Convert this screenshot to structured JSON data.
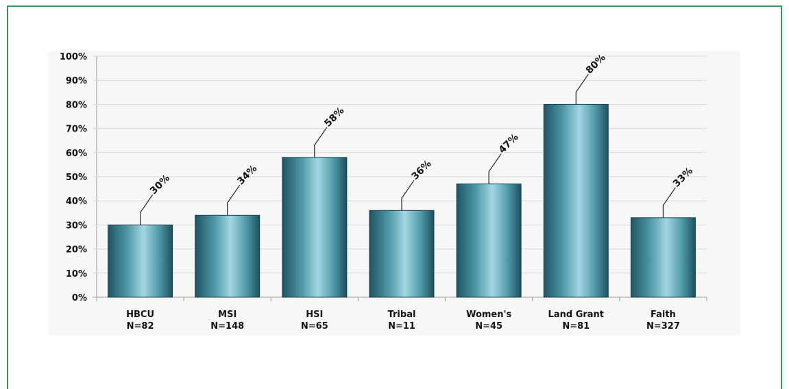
{
  "chart_data": {
    "type": "bar",
    "categories": [
      "HBCU",
      "MSI",
      "HSI",
      "Tribal",
      "Women's",
      "Land Grant",
      "Faith"
    ],
    "category_n": [
      "N=82",
      "N=148",
      "N=65",
      "N=11",
      "N=45",
      "N=81",
      "N=327"
    ],
    "values": [
      30,
      34,
      58,
      36,
      47,
      80,
      33
    ],
    "data_labels": [
      "30%",
      "34%",
      "58%",
      "36%",
      "47%",
      "80%",
      "33%"
    ],
    "title": "",
    "xlabel": "",
    "ylabel": "",
    "ylim": [
      0,
      100
    ],
    "yticks": [
      "0%",
      "10%",
      "20%",
      "30%",
      "40%",
      "50%",
      "60%",
      "70%",
      "80%",
      "90%",
      "100%"
    ],
    "grid": true,
    "legend": "none",
    "colors": {
      "bar": "#4f98a8",
      "bar_highlight": "#9fd3e0",
      "bar_dark": "#1f5562",
      "grid": "#d9d9d9",
      "frame": "#2f9a55"
    }
  }
}
